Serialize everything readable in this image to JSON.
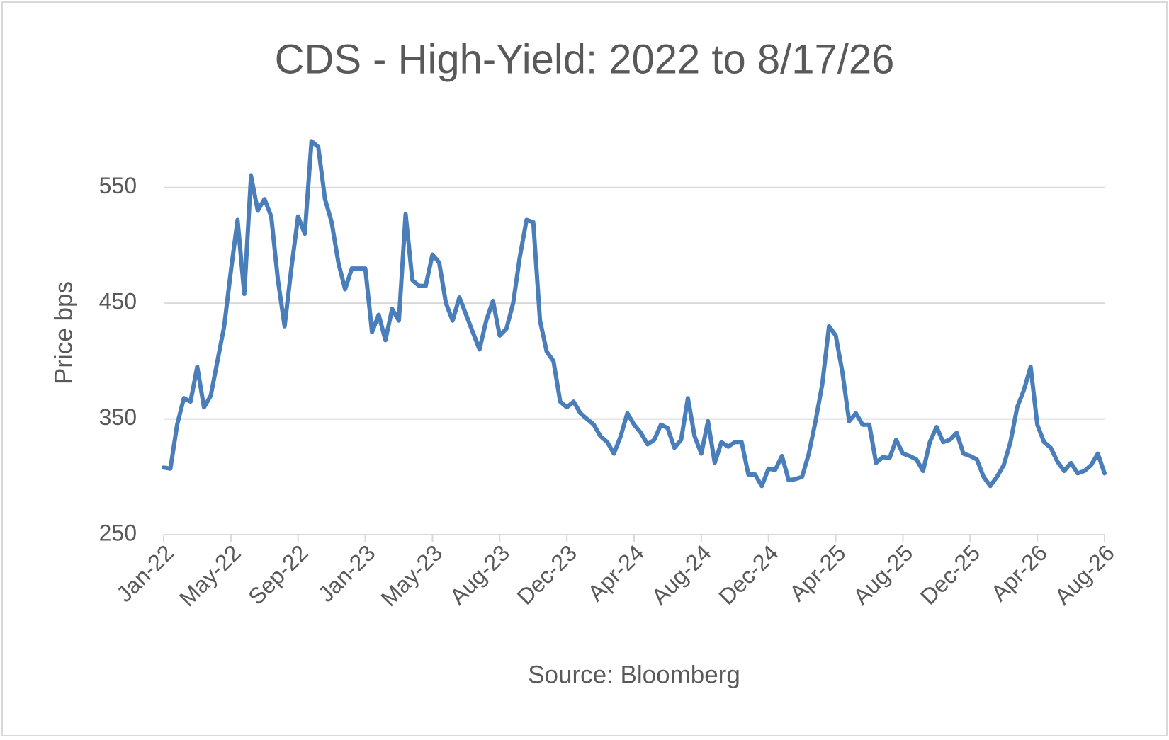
{
  "chart_data": {
    "type": "line",
    "title": "CDS - High-Yield: 2022 to 8/17/26",
    "y_label": "Price bps",
    "x_label": "Source: Bloomberg",
    "color": "#4a7ebb",
    "ylim": [
      250,
      600
    ],
    "yticks": [
      250,
      350,
      450,
      550
    ],
    "grid": true,
    "categories": [
      "Jan-22",
      null,
      null,
      null,
      null,
      null,
      null,
      null,
      null,
      null,
      "May-22",
      null,
      null,
      null,
      null,
      null,
      null,
      null,
      null,
      null,
      "Sep-22",
      null,
      null,
      null,
      null,
      null,
      null,
      null,
      null,
      null,
      "Jan-23",
      null,
      null,
      null,
      null,
      null,
      null,
      null,
      null,
      null,
      "May-23",
      null,
      null,
      null,
      null,
      null,
      null,
      null,
      null,
      null,
      "Aug-23",
      null,
      null,
      null,
      null,
      null,
      null,
      null,
      null,
      null,
      "Dec-23",
      null,
      null,
      null,
      null,
      null,
      null,
      null,
      null,
      null,
      "Apr-24",
      null,
      null,
      null,
      null,
      null,
      null,
      null,
      null,
      null,
      "Aug-24",
      null,
      null,
      null,
      null,
      null,
      null,
      null,
      null,
      null,
      "Dec-24",
      null,
      null,
      null,
      null,
      null,
      null,
      null,
      null,
      null,
      "Apr-25",
      null,
      null,
      null,
      null,
      null,
      null,
      null,
      null,
      null,
      "Aug-25",
      null,
      null,
      null,
      null,
      null,
      null,
      null,
      null,
      null,
      "Dec-25",
      null,
      null,
      null,
      null,
      null,
      null,
      null,
      null,
      null,
      "Apr-26",
      null,
      null,
      null,
      null,
      null,
      null,
      null,
      null,
      null,
      "Aug-26"
    ],
    "values": [
      308,
      307,
      345,
      368,
      365,
      395,
      360,
      370,
      400,
      430,
      478,
      522,
      458,
      560,
      530,
      540,
      525,
      470,
      430,
      480,
      525,
      510,
      590,
      585,
      540,
      520,
      485,
      462,
      480,
      480,
      480,
      425,
      440,
      418,
      445,
      435,
      527,
      470,
      465,
      465,
      492,
      485,
      450,
      435,
      455,
      440,
      425,
      410,
      435,
      452,
      422,
      428,
      450,
      490,
      522,
      520,
      435,
      408,
      400,
      365,
      360,
      365,
      355,
      350,
      345,
      335,
      330,
      320,
      335,
      355,
      345,
      338,
      328,
      332,
      345,
      342,
      325,
      332,
      368,
      335,
      320,
      348,
      312,
      330,
      326,
      330,
      330,
      302,
      302,
      292,
      307,
      306,
      318,
      297,
      298,
      300,
      320,
      348,
      380,
      430,
      422,
      390,
      348,
      355,
      345,
      345,
      312,
      317,
      316,
      332,
      320,
      318,
      315,
      305,
      330,
      343,
      330,
      332,
      338,
      320,
      318,
      315,
      300,
      292,
      300,
      310,
      330,
      360,
      375,
      395,
      345,
      330,
      325,
      313,
      305,
      312,
      303,
      305,
      310,
      320,
      303
    ]
  }
}
